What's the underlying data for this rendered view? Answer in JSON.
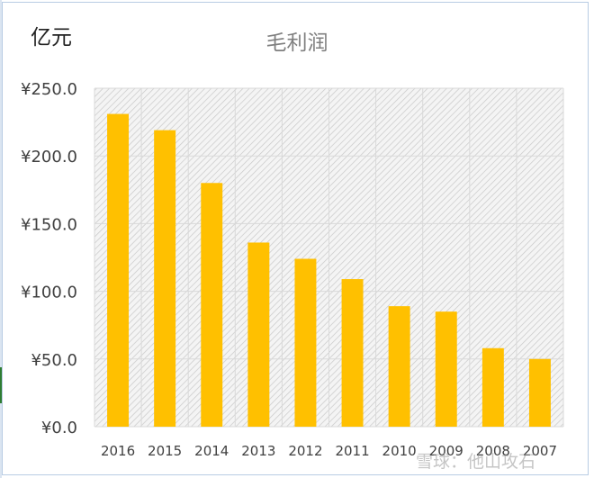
{
  "chart_data": {
    "type": "bar",
    "title": "毛利润",
    "unit": "亿元",
    "categories": [
      "2016",
      "2015",
      "2014",
      "2013",
      "2012",
      "2011",
      "2010",
      "2009",
      "2008",
      "2007"
    ],
    "values": [
      231,
      219,
      180,
      136,
      124,
      109,
      89,
      85,
      58,
      50
    ],
    "ylim": [
      0,
      250
    ],
    "yticks": [
      "¥0.0",
      "¥50.0",
      "¥100.0",
      "¥150.0",
      "¥200.0",
      "¥250.0"
    ],
    "grid": true,
    "bar_color": "#ffc000",
    "xlabel": "",
    "ylabel": ""
  },
  "watermark": "雪球：他山攻石"
}
